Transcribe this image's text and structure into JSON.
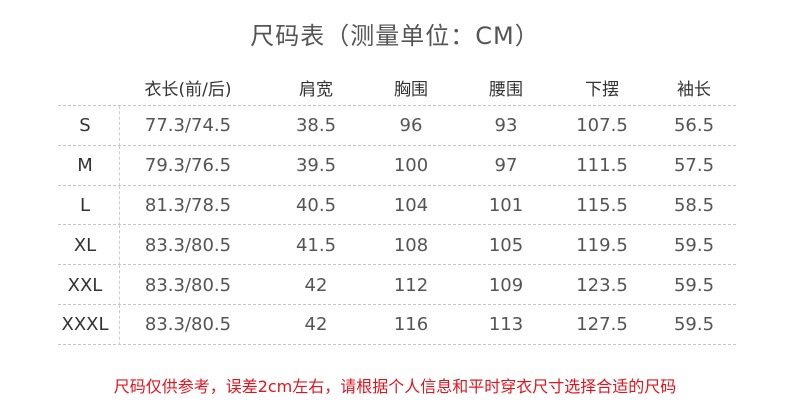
{
  "title": "尺码表（测量单位：CM）",
  "headers": [
    "",
    "衣长(前/后)",
    "肩宽",
    "胸围",
    "腰围",
    "下摆",
    "袖长"
  ],
  "rows": [
    [
      "S",
      "77.3/74.5",
      "38.5",
      "96",
      "93",
      "107.5",
      "56.5"
    ],
    [
      "M",
      "79.3/76.5",
      "39.5",
      "100",
      "97",
      "111.5",
      "57.5"
    ],
    [
      "L",
      "81.3/78.5",
      "40.5",
      "104",
      "101",
      "115.5",
      "58.5"
    ],
    [
      "XL",
      "83.3/80.5",
      "41.5",
      "108",
      "105",
      "119.5",
      "59.5"
    ],
    [
      "XXL",
      "83.3/80.5",
      "42",
      "112",
      "109",
      "123.5",
      "59.5"
    ],
    [
      "XXXL",
      "83.3/80.5",
      "42",
      "116",
      "113",
      "127.5",
      "59.5"
    ]
  ],
  "note": "尺码仅供参考，误差2cm左右，请根据个人信息和平时穿衣尺寸选择合适的尺码",
  "colors": {
    "note": "#e0141e",
    "text": "#555555"
  }
}
